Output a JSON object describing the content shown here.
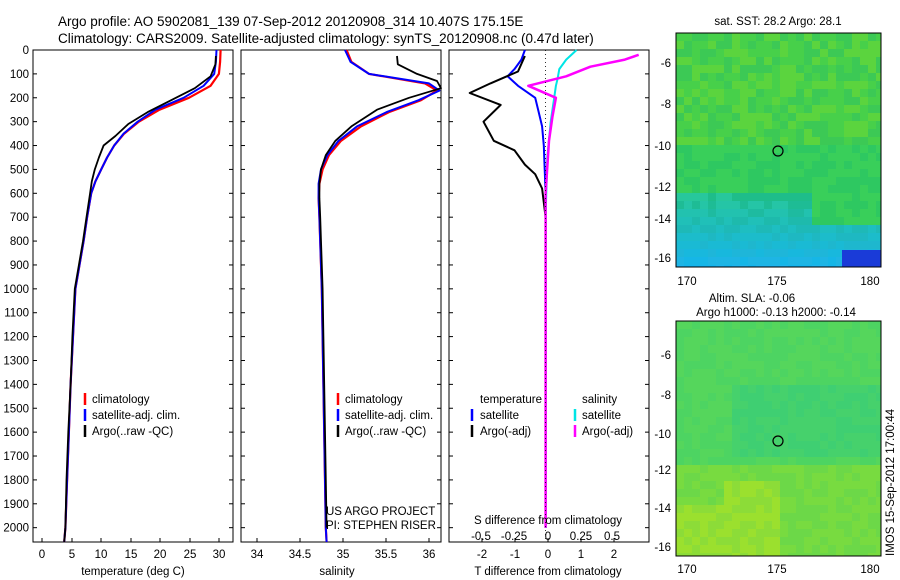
{
  "header": {
    "line1": "Argo profile: AO 5902081_139 07-Sep-2012 20120908_314 10.407S 175.15E",
    "line2": "Climatology: CARS2009. Satellite-adjusted climatology: synTS_20120908.nc (0.47d later)"
  },
  "colors": {
    "climatology": "#ff0000",
    "satellite": "#0000ff",
    "argo": "#000000",
    "argo_adj_S": "#ff00ff",
    "satellite_S": "#00e5e5",
    "sst_green": "#3ed64a",
    "sla_green": "#4fd86a"
  },
  "depth_axis": {
    "ticks": [
      0,
      100,
      200,
      300,
      400,
      500,
      600,
      700,
      800,
      900,
      1000,
      1100,
      1200,
      1300,
      1400,
      1500,
      1600,
      1700,
      1800,
      1900,
      2000
    ],
    "range": [
      0,
      2060
    ]
  },
  "panels": {
    "temperature": {
      "xlabel": "temperature (deg C)",
      "xticks": [
        "0",
        "5",
        "10",
        "15",
        "20",
        "25",
        "30"
      ],
      "legend": [
        "climatology",
        "satellite-adj. clim.",
        "Argo(..raw -QC)"
      ]
    },
    "salinity": {
      "xlabel": "salinity",
      "xticks": [
        "34",
        "34.5",
        "35",
        "35.5",
        "36"
      ],
      "legend": [
        "climatology",
        "satellite-adj. clim.",
        "Argo(..raw -QC)"
      ],
      "credit1": "US ARGO PROJECT",
      "credit2": "PI: STEPHEN RISER"
    },
    "difference": {
      "legend_head_T": "temperature",
      "legend_head_S": "salinity",
      "legend_T": [
        "satellite",
        "Argo(-adj)"
      ],
      "legend_S": [
        "satellite",
        "Argo(-adj)"
      ],
      "top_label": "S difference from climatology",
      "top_ticks": [
        "-0.5",
        "-0.25",
        "0",
        "0.25",
        "0.5"
      ],
      "xlabel": "T difference from climatology",
      "xticks": [
        "-2",
        "-1",
        "0",
        "1",
        "2"
      ]
    },
    "sst_map": {
      "title": "sat. SST: 28.2 Argo: 28.1",
      "xticks": [
        "170",
        "175",
        "180"
      ],
      "yticks": [
        "-6",
        "-8",
        "-10",
        "-12",
        "-14",
        "-16"
      ]
    },
    "sla_map": {
      "title1": "Altim. SLA: -0.06",
      "title2": "Argo h1000: -0.13 h2000: -0.14",
      "xticks": [
        "170",
        "175",
        "180"
      ],
      "yticks": [
        "-6",
        "-8",
        "-10",
        "-12",
        "-14",
        "-16"
      ]
    },
    "timestamp": "IMOS 15-Sep-2012 17:00:44"
  },
  "chart_data": [
    {
      "type": "line",
      "title": "",
      "xlabel": "temperature (deg C)",
      "ylabel": "",
      "xlim": [
        -3,
        31
      ],
      "ylim": [
        2060,
        0
      ],
      "series": [
        {
          "name": "climatology",
          "x": [
            28.9,
            28.8,
            28.6,
            27.2,
            23.5,
            18.5,
            15.0,
            12.5,
            10.8,
            9.6,
            8.6,
            7.6,
            6.9,
            6.2,
            5.6,
            4.9,
            4.2,
            3.8,
            3.4,
            3.1,
            2.8,
            2.5,
            2.3
          ],
          "y": [
            0,
            50,
            100,
            150,
            200,
            250,
            300,
            350,
            400,
            450,
            500,
            550,
            600,
            700,
            800,
            900,
            1000,
            1200,
            1400,
            1600,
            1800,
            2000,
            2060
          ]
        },
        {
          "name": "satellite-adj. clim.",
          "x": [
            28.2,
            28.1,
            27.8,
            26.0,
            22.6,
            17.8,
            14.8,
            12.4,
            10.8,
            9.6,
            8.6,
            7.6,
            6.9,
            6.2,
            5.6,
            4.9,
            4.2,
            3.8,
            3.4,
            3.1,
            2.8,
            2.5,
            2.3
          ],
          "y": [
            0,
            50,
            100,
            150,
            200,
            250,
            300,
            350,
            400,
            450,
            500,
            550,
            600,
            700,
            800,
            900,
            1000,
            1200,
            1400,
            1600,
            1800,
            2000,
            2060
          ]
        },
        {
          "name": "Argo(..raw -QC)",
          "x": [
            28.1,
            28.0,
            27.2,
            24.5,
            20.5,
            16.5,
            13.2,
            11.0,
            9.0,
            8.2,
            7.5,
            7.0,
            6.7,
            6.1,
            5.5,
            4.8,
            4.1,
            3.7,
            3.4,
            3.0,
            2.7,
            2.5,
            2.3
          ],
          "y": [
            25,
            60,
            110,
            160,
            210,
            260,
            310,
            360,
            400,
            450,
            500,
            550,
            600,
            700,
            800,
            900,
            1000,
            1200,
            1400,
            1600,
            1800,
            2000,
            2060
          ]
        }
      ]
    },
    {
      "type": "line",
      "title": "",
      "xlabel": "salinity",
      "ylabel": "",
      "xlim": [
        33.6,
        36.1
      ],
      "ylim": [
        2060,
        0
      ],
      "series": [
        {
          "name": "climatology",
          "x": [
            34.92,
            34.98,
            35.2,
            35.9,
            36.05,
            35.85,
            35.45,
            35.1,
            34.85,
            34.7,
            34.62,
            34.58,
            34.57,
            34.58,
            34.59,
            34.6,
            34.61,
            34.62,
            34.63,
            34.64,
            34.65,
            34.66,
            34.67
          ],
          "y": [
            0,
            50,
            100,
            140,
            170,
            210,
            260,
            320,
            380,
            440,
            500,
            560,
            620,
            700,
            800,
            900,
            1000,
            1200,
            1400,
            1600,
            1800,
            2000,
            2060
          ]
        },
        {
          "name": "satellite-adj. clim.",
          "x": [
            34.9,
            34.97,
            35.2,
            35.95,
            36.08,
            35.82,
            35.42,
            35.05,
            34.82,
            34.68,
            34.6,
            34.57,
            34.57,
            34.58,
            34.59,
            34.6,
            34.61,
            34.62,
            34.63,
            34.64,
            34.65,
            34.66,
            34.67
          ],
          "y": [
            0,
            50,
            100,
            140,
            170,
            210,
            260,
            320,
            380,
            440,
            500,
            560,
            620,
            700,
            800,
            900,
            1000,
            1200,
            1400,
            1600,
            1800,
            2000,
            2060
          ]
        },
        {
          "name": "Argo(..raw -QC)",
          "x": [
            35.55,
            35.56,
            35.8,
            36.05,
            36.1,
            35.7,
            35.3,
            34.98,
            34.78,
            34.66,
            34.6,
            34.58,
            34.58,
            34.59,
            34.6,
            34.61,
            34.62,
            34.63,
            34.64,
            34.65,
            34.66,
            34.67
          ],
          "y": [
            25,
            60,
            100,
            130,
            160,
            200,
            250,
            320,
            380,
            440,
            500,
            560,
            620,
            700,
            800,
            900,
            1000,
            1200,
            1400,
            1600,
            1800,
            2000
          ]
        }
      ]
    },
    {
      "type": "line",
      "title": "",
      "xlabel": "T difference from climatology",
      "ylabel": "",
      "xlim": [
        -2.8,
        3.0
      ],
      "ylim": [
        2060,
        0
      ],
      "series": [
        {
          "name": "temperature satellite",
          "x": [
            -0.6,
            -0.7,
            -0.9,
            -1.1,
            -0.8,
            -0.3,
            -0.2,
            -0.1,
            -0.05,
            0,
            0,
            0
          ],
          "y": [
            0,
            40,
            80,
            110,
            150,
            200,
            260,
            320,
            400,
            600,
            1200,
            2000
          ]
        },
        {
          "name": "temperature Argo(-adj)",
          "x": [
            -0.6,
            -0.8,
            -1.6,
            -2.2,
            -1.3,
            -1.8,
            -1.5,
            -0.9,
            -0.6,
            -0.3,
            -0.1,
            0,
            0,
            0
          ],
          "y": [
            25,
            90,
            140,
            180,
            230,
            300,
            380,
            420,
            480,
            520,
            580,
            700,
            1200,
            2000
          ]
        },
        {
          "name": "salinity satellite",
          "x": [
            0.9,
            0.6,
            0.4,
            0.35,
            0.3,
            0.25,
            0.15,
            0.05,
            0,
            0,
            0
          ],
          "y": [
            0,
            40,
            80,
            120,
            150,
            200,
            300,
            450,
            700,
            1200,
            2000
          ]
        },
        {
          "name": "salinity Argo(-adj)",
          "x": [
            2.7,
            2.3,
            1.3,
            0.6,
            -0.5,
            0.3,
            0.2,
            0.1,
            0,
            0,
            0
          ],
          "y": [
            20,
            40,
            70,
            110,
            150,
            200,
            280,
            380,
            600,
            1200,
            2000
          ]
        }
      ]
    }
  ]
}
